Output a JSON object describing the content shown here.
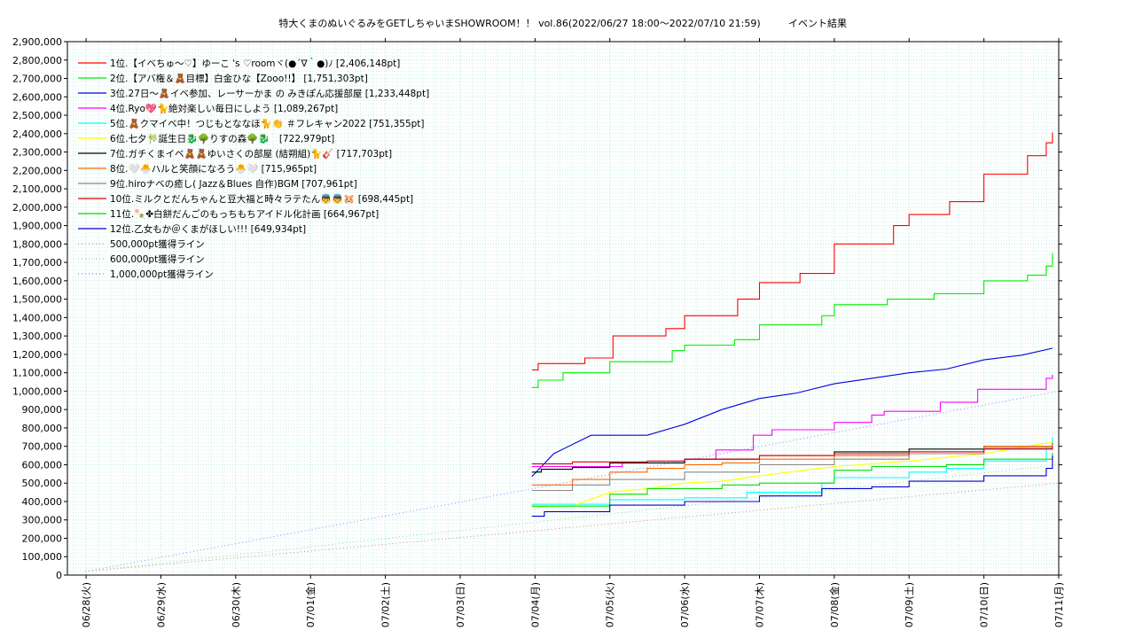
{
  "chart_data": {
    "type": "line",
    "title": "特大くまのぬいぐるみをGETしちゃいまSHOWROOM！！ vol.86(2022/06/27 18:00～2022/07/10 21:59)",
    "subtitle": "イベント結果",
    "xlabel": "",
    "ylabel": "",
    "ylim": [
      0,
      2900000
    ],
    "xlim": [
      "2022-06-27 18:00",
      "2022-07-11 00:00"
    ],
    "x_tick_labels": [
      "06/28(火)",
      "06/29(水)",
      "06/30(木)",
      "07/01(金)",
      "07/02(土)",
      "07/03(日)",
      "07/04(月)",
      "07/05(火)",
      "07/06(水)",
      "07/07(木)",
      "07/08(金)",
      "07/09(土)",
      "07/10(日)",
      "07/11(月)"
    ],
    "y_tick_labels": [
      "0",
      "100,000",
      "200,000",
      "300,000",
      "400,000",
      "500,000",
      "600,000",
      "700,000",
      "800,000",
      "900,000",
      "1,000,000",
      "1,100,000",
      "1,200,000",
      "1,300,000",
      "1,400,000",
      "1,500,000",
      "1,600,000",
      "1,700,000",
      "1,800,000",
      "1,900,000",
      "2,000,000",
      "2,100,000",
      "2,200,000",
      "2,300,000",
      "2,400,000",
      "2,500,000",
      "2,600,000",
      "2,700,000",
      "2,800,000",
      "2,900,000"
    ],
    "grid": true,
    "legend_position": "top-left",
    "series": [
      {
        "name": "1位.【イベちゅ～♡】ゆーこ 's ♡roomヾ(●´∇｀●)ﾉ [2,406,148pt]",
        "color": "#ff0000",
        "step": true,
        "points": [
          [
            "2022-07-03 23:00",
            1115000
          ],
          [
            "2022-07-04 01:00",
            1150000
          ],
          [
            "2022-07-04 16:00",
            1180000
          ],
          [
            "2022-07-05 01:00",
            1300000
          ],
          [
            "2022-07-05 18:00",
            1340000
          ],
          [
            "2022-07-06 00:00",
            1410000
          ],
          [
            "2022-07-06 17:00",
            1500000
          ],
          [
            "2022-07-07 00:00",
            1590000
          ],
          [
            "2022-07-07 13:00",
            1640000
          ],
          [
            "2022-07-08 00:00",
            1800000
          ],
          [
            "2022-07-08 19:00",
            1900000
          ],
          [
            "2022-07-09 00:00",
            1960000
          ],
          [
            "2022-07-09 13:00",
            2030000
          ],
          [
            "2022-07-10 00:00",
            2180000
          ],
          [
            "2022-07-10 14:00",
            2280000
          ],
          [
            "2022-07-10 20:00",
            2350000
          ],
          [
            "2022-07-10 21:59",
            2406148
          ]
        ]
      },
      {
        "name": "2位.【アバ権＆🧸目標】白金ひな【Zooo!!】 [1,751,303pt]",
        "color": "#00ee00",
        "step": true,
        "points": [
          [
            "2022-07-03 23:00",
            1020000
          ],
          [
            "2022-07-04 01:00",
            1060000
          ],
          [
            "2022-07-04 09:00",
            1100000
          ],
          [
            "2022-07-05 00:00",
            1160000
          ],
          [
            "2022-07-05 20:00",
            1220000
          ],
          [
            "2022-07-06 00:00",
            1250000
          ],
          [
            "2022-07-06 16:00",
            1280000
          ],
          [
            "2022-07-07 00:00",
            1360000
          ],
          [
            "2022-07-07 20:00",
            1410000
          ],
          [
            "2022-07-08 00:00",
            1470000
          ],
          [
            "2022-07-08 17:00",
            1500000
          ],
          [
            "2022-07-09 08:00",
            1530000
          ],
          [
            "2022-07-10 00:00",
            1600000
          ],
          [
            "2022-07-10 14:00",
            1630000
          ],
          [
            "2022-07-10 20:00",
            1680000
          ],
          [
            "2022-07-10 21:59",
            1751303
          ]
        ]
      },
      {
        "name": "3位.27日～🧸イベ参加、レーサーかま の みきぽん応援部屋 [1,233,448pt]",
        "color": "#0000dd",
        "step": false,
        "points": [
          [
            "2022-07-03 23:00",
            535000
          ],
          [
            "2022-07-04 06:00",
            660000
          ],
          [
            "2022-07-04 18:00",
            760000
          ],
          [
            "2022-07-05 12:00",
            760000
          ],
          [
            "2022-07-06 00:00",
            820000
          ],
          [
            "2022-07-06 12:00",
            900000
          ],
          [
            "2022-07-07 00:00",
            960000
          ],
          [
            "2022-07-07 12:00",
            990000
          ],
          [
            "2022-07-08 00:00",
            1040000
          ],
          [
            "2022-07-08 12:00",
            1070000
          ],
          [
            "2022-07-09 00:00",
            1100000
          ],
          [
            "2022-07-09 12:00",
            1120000
          ],
          [
            "2022-07-10 00:00",
            1170000
          ],
          [
            "2022-07-10 12:00",
            1195000
          ],
          [
            "2022-07-10 21:59",
            1233448
          ]
        ]
      },
      {
        "name": "4位.Ryo💖🐈絶対楽しい毎日にしよう [1,089,267pt]",
        "color": "#ff00ff",
        "step": true,
        "points": [
          [
            "2022-07-03 23:00",
            590000
          ],
          [
            "2022-07-05 04:00",
            610000
          ],
          [
            "2022-07-06 00:00",
            630000
          ],
          [
            "2022-07-06 10:00",
            680000
          ],
          [
            "2022-07-06 22:00",
            760000
          ],
          [
            "2022-07-07 04:00",
            790000
          ],
          [
            "2022-07-08 00:00",
            830000
          ],
          [
            "2022-07-08 12:00",
            870000
          ],
          [
            "2022-07-08 16:00",
            890000
          ],
          [
            "2022-07-09 10:00",
            940000
          ],
          [
            "2022-07-09 22:00",
            1010000
          ],
          [
            "2022-07-10 20:00",
            1070000
          ],
          [
            "2022-07-10 21:59",
            1089267
          ]
        ]
      },
      {
        "name": "5位.🧸クマイベ中！つじもとななほ🐈👏 ＃フレキャン2022 [751,355pt]",
        "color": "#00ffff",
        "step": true,
        "points": [
          [
            "2022-07-03 23:00",
            385000
          ],
          [
            "2022-07-05 00:00",
            410000
          ],
          [
            "2022-07-06 00:00",
            420000
          ],
          [
            "2022-07-06 20:00",
            450000
          ],
          [
            "2022-07-07 20:00",
            500000
          ],
          [
            "2022-07-08 00:00",
            530000
          ],
          [
            "2022-07-09 00:00",
            560000
          ],
          [
            "2022-07-09 12:00",
            580000
          ],
          [
            "2022-07-10 00:00",
            620000
          ],
          [
            "2022-07-10 20:00",
            700000
          ],
          [
            "2022-07-10 21:59",
            751355
          ]
        ]
      },
      {
        "name": "6位.七夕🎋誕生日🐉🌳りすの森🌳🐉　[722,979pt]",
        "color": "#ffff00",
        "step": false,
        "points": [
          [
            "2022-07-03 23:00",
            370000
          ],
          [
            "2022-07-04 12:00",
            375000
          ],
          [
            "2022-07-05 00:00",
            450000
          ],
          [
            "2022-07-05 12:00",
            470000
          ],
          [
            "2022-07-06 00:00",
            500000
          ],
          [
            "2022-07-06 12:00",
            510000
          ],
          [
            "2022-07-07 00:00",
            540000
          ],
          [
            "2022-07-08 00:00",
            590000
          ],
          [
            "2022-07-09 00:00",
            620000
          ],
          [
            "2022-07-10 00:00",
            660000
          ],
          [
            "2022-07-10 21:59",
            722979
          ]
        ]
      },
      {
        "name": "7位.ガチくまイベ🧸🧸ゆいさくの部屋 (結朔組)🐈🎸 [717,703pt]",
        "color": "#000000",
        "step": true,
        "points": [
          [
            "2022-07-03 23:00",
            560000
          ],
          [
            "2022-07-04 02:00",
            575000
          ],
          [
            "2022-07-04 12:00",
            585000
          ],
          [
            "2022-07-05 00:00",
            610000
          ],
          [
            "2022-07-06 00:00",
            630000
          ],
          [
            "2022-07-07 00:00",
            650000
          ],
          [
            "2022-07-08 00:00",
            670000
          ],
          [
            "2022-07-09 00:00",
            685000
          ],
          [
            "2022-07-10 00:00",
            700000
          ],
          [
            "2022-07-10 21:59",
            717703
          ]
        ]
      },
      {
        "name": "8位.🤍🐣ハルと笑顔になろう🐣🤍 [715,965pt]",
        "color": "#ff6600",
        "step": true,
        "points": [
          [
            "2022-07-03 23:00",
            490000
          ],
          [
            "2022-07-04 12:00",
            520000
          ],
          [
            "2022-07-05 00:00",
            560000
          ],
          [
            "2022-07-05 12:00",
            580000
          ],
          [
            "2022-07-06 00:00",
            600000
          ],
          [
            "2022-07-06 12:00",
            610000
          ],
          [
            "2022-07-07 00:00",
            630000
          ],
          [
            "2022-07-08 00:00",
            650000
          ],
          [
            "2022-07-09 00:00",
            670000
          ],
          [
            "2022-07-10 00:00",
            700000
          ],
          [
            "2022-07-10 21:59",
            715965
          ]
        ]
      },
      {
        "name": "9位.hiroナベの癒し( Jazz＆Blues 自作)BGM [707,961pt]",
        "color": "#888888",
        "step": true,
        "points": [
          [
            "2022-07-03 23:00",
            460000
          ],
          [
            "2022-07-04 12:00",
            490000
          ],
          [
            "2022-07-05 00:00",
            520000
          ],
          [
            "2022-07-06 00:00",
            560000
          ],
          [
            "2022-07-07 00:00",
            600000
          ],
          [
            "2022-07-08 00:00",
            630000
          ],
          [
            "2022-07-09 00:00",
            660000
          ],
          [
            "2022-07-10 00:00",
            690000
          ],
          [
            "2022-07-10 21:59",
            707961
          ]
        ]
      },
      {
        "name": "10位.ミルクとだんちゃんと豆大福と時々ラテたん👼👼🐹 [698,445pt]",
        "color": "#dd0000",
        "step": true,
        "points": [
          [
            "2022-07-03 23:00",
            605000
          ],
          [
            "2022-07-04 12:00",
            615000
          ],
          [
            "2022-07-05 12:00",
            620000
          ],
          [
            "2022-07-06 00:00",
            630000
          ],
          [
            "2022-07-07 00:00",
            650000
          ],
          [
            "2022-07-08 00:00",
            660000
          ],
          [
            "2022-07-09 00:00",
            670000
          ],
          [
            "2022-07-10 00:00",
            685000
          ],
          [
            "2022-07-10 21:59",
            698445
          ]
        ]
      },
      {
        "name": "11位.🍡✤白餅だんごのもっちもちアイドル化計画 [664,967pt]",
        "color": "#00dd00",
        "step": true,
        "points": [
          [
            "2022-07-03 23:00",
            375000
          ],
          [
            "2022-07-05 00:00",
            440000
          ],
          [
            "2022-07-05 12:00",
            470000
          ],
          [
            "2022-07-06 12:00",
            490000
          ],
          [
            "2022-07-07 00:00",
            500000
          ],
          [
            "2022-07-08 00:00",
            570000
          ],
          [
            "2022-07-08 12:00",
            590000
          ],
          [
            "2022-07-09 12:00",
            600000
          ],
          [
            "2022-07-10 00:00",
            630000
          ],
          [
            "2022-07-10 21:59",
            664967
          ]
        ]
      },
      {
        "name": "12位.乙女もか＠くまがほしい!!! [649,934pt]",
        "color": "#0000cc",
        "step": true,
        "points": [
          [
            "2022-07-03 23:00",
            320000
          ],
          [
            "2022-07-04 03:00",
            345000
          ],
          [
            "2022-07-05 00:00",
            380000
          ],
          [
            "2022-07-06 00:00",
            400000
          ],
          [
            "2022-07-07 00:00",
            430000
          ],
          [
            "2022-07-07 20:00",
            470000
          ],
          [
            "2022-07-08 12:00",
            480000
          ],
          [
            "2022-07-09 00:00",
            510000
          ],
          [
            "2022-07-10 00:00",
            540000
          ],
          [
            "2022-07-10 20:00",
            580000
          ],
          [
            "2022-07-10 21:59",
            649934
          ]
        ]
      }
    ],
    "reference_lines": [
      {
        "name": "500,000pt獲得ライン",
        "color": "#cc8888",
        "value": 500000
      },
      {
        "name": "600,000pt獲得ライン",
        "color": "#88dd88",
        "value": 600000
      },
      {
        "name": "1,000,000pt獲得ライン",
        "color": "#8888ff",
        "value": 1000000
      }
    ]
  }
}
